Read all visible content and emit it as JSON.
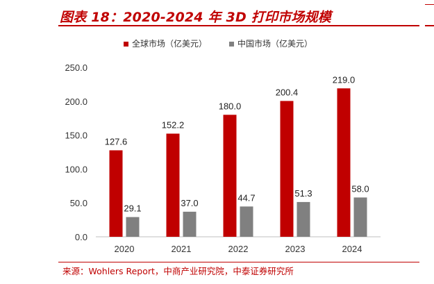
{
  "header": {
    "title": "图表 18：2020-2024 年 3D 打印市场规模"
  },
  "footer": {
    "source": "来源：Wohlers Report，中商产业研究院，中泰证券研究所"
  },
  "chart_data": {
    "type": "bar",
    "categories": [
      "2020",
      "2021",
      "2022",
      "2023",
      "2024"
    ],
    "series": [
      {
        "name": "全球市场（亿美元）",
        "values": [
          127.6,
          152.2,
          180.0,
          200.4,
          219.0
        ],
        "labels": [
          "127.6",
          "152.2",
          "180.0",
          "200.4",
          "219.0"
        ],
        "color": "#c00000"
      },
      {
        "name": "中国市场（亿美元）",
        "values": [
          29.1,
          37.0,
          44.7,
          51.3,
          58.0
        ],
        "labels": [
          "29.1",
          "37.0",
          "44.7",
          "51.3",
          "58.0"
        ],
        "color": "#808080"
      }
    ],
    "ylim": [
      0,
      250
    ],
    "yticks": [
      "0.0",
      "50.0",
      "100.0",
      "150.0",
      "200.0",
      "250.0"
    ],
    "legend_position": "top-center",
    "grid": false
  }
}
